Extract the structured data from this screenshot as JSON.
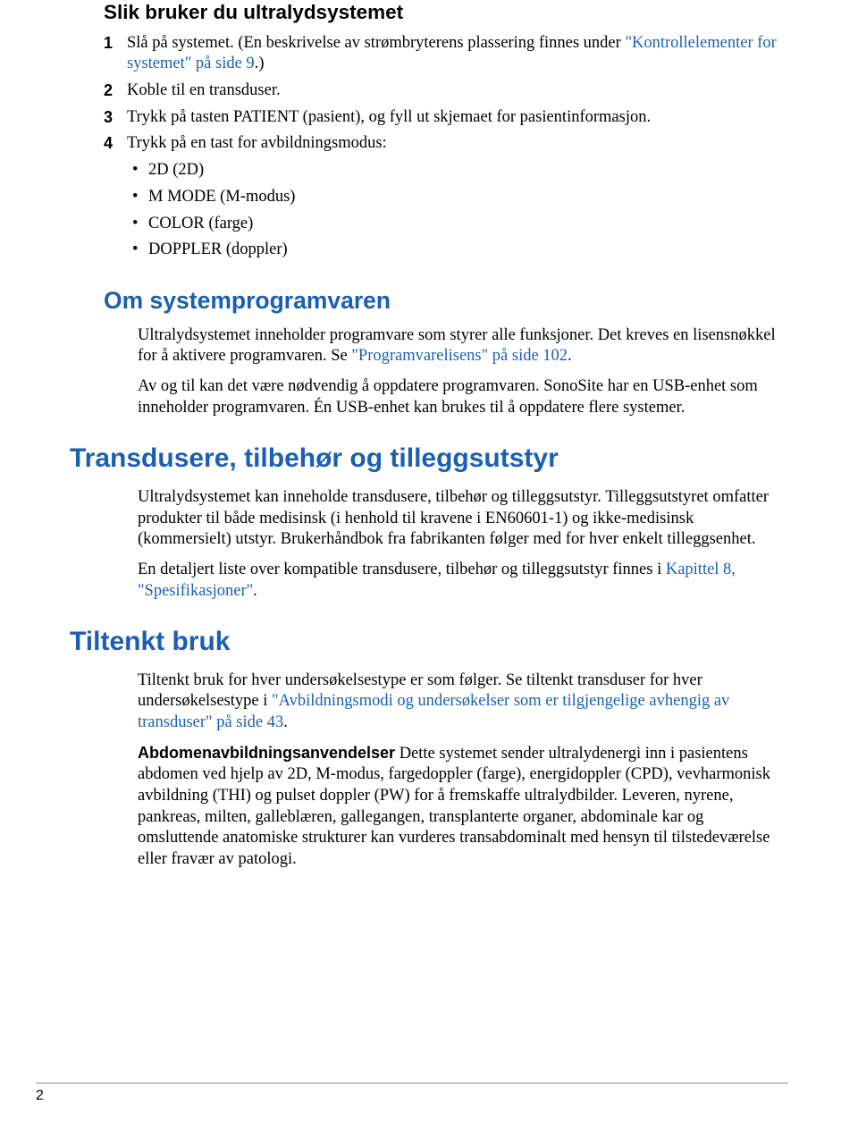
{
  "colors": {
    "heading_blue": "#1a5fb4",
    "link": "#1a5fb4",
    "text": "#000000",
    "background": "#ffffff",
    "rule": "#888888"
  },
  "typography": {
    "body_family": "Palatino Linotype, Book Antiqua, Palatino, serif",
    "body_size_pt": 14,
    "heading_family": "Segoe UI, Helvetica Neue, Arial, sans-serif",
    "h_main_size_pt": 17,
    "h_section_size_pt": 20,
    "h_subsection_size_pt": 22
  },
  "h_usage": "Slik bruker du ultralydsystemet",
  "steps": [
    {
      "num": "1",
      "pre": "Slå på systemet. (En beskrivelse av strømbryterens plassering finnes under ",
      "link": "\"Kontrollelementer for systemet\" på side 9",
      "post": ".)"
    },
    {
      "num": "2",
      "text": "Koble til en transduser."
    },
    {
      "num": "3",
      "text": "Trykk på tasten PATIENT (pasient), og fyll ut skjemaet for pasientinformasjon."
    },
    {
      "num": "4",
      "text": "Trykk på en tast for avbildningsmodus:",
      "bullets": [
        "2D (2D)",
        "M MODE (M-modus)",
        "COLOR (farge)",
        "DOPPLER (doppler)"
      ]
    }
  ],
  "h_software": "Om systemprogramvaren",
  "software_p1_a": "Ultralydsystemet inneholder programvare som styrer alle funksjoner. Det kreves en lisensnøkkel for å aktivere programvaren. Se ",
  "software_p1_link": "\"Programvarelisens\" på side 102",
  "software_p1_c": ".",
  "software_p2": "Av og til kan det være nødvendig å oppdatere programvaren. SonoSite har en USB-enhet som inneholder programvaren. Én USB-enhet kan brukes til å oppdatere flere systemer.",
  "h_transducers": "Transdusere, tilbehør og tilleggsutstyr",
  "trans_p1": "Ultralydsystemet kan inneholde transdusere, tilbehør og tilleggsutstyr. Tilleggsutstyret omfatter produkter til både medisinsk (i henhold til kravene i EN60601-1) og ikke-medisinsk (kommersielt) utstyr. Brukerhåndbok fra fabrikanten følger med for hver enkelt tilleggsenhet.",
  "trans_p2_a": "En detaljert liste over kompatible transdusere, tilbehør og tilleggsutstyr finnes i ",
  "trans_p2_link": "Kapittel 8, \"Spesifikasjoner\"",
  "trans_p2_c": ".",
  "h_tiltenkt": "Tiltenkt bruk",
  "tiltenkt_p1_a": "Tiltenkt bruk for hver undersøkelsestype er som følger. Se tiltenkt transduser for hver undersøkelsestype i ",
  "tiltenkt_p1_link": "\"Avbildningsmodi og undersøkelser som er tilgjengelige avhengig av transduser\" på side 43",
  "tiltenkt_p1_c": ".",
  "tiltenkt_p2_runin": "Abdomenavbildningsanvendelser",
  "tiltenkt_p2_body": " Dette systemet sender ultralydenergi inn i pasientens abdomen ved hjelp av 2D, M-modus, fargedoppler (farge), energidoppler (CPD), vevharmonisk avbildning (THI) og pulset doppler (PW) for å fremskaffe ultralydbilder. Leveren, nyrene, pankreas, milten, galleblæren, gallegangen, transplanterte organer, abdominale kar og omsluttende anatomiske strukturer kan vurderes transabdominalt med hensyn til tilstedeværelse eller fravær av patologi.",
  "page_number": "2"
}
